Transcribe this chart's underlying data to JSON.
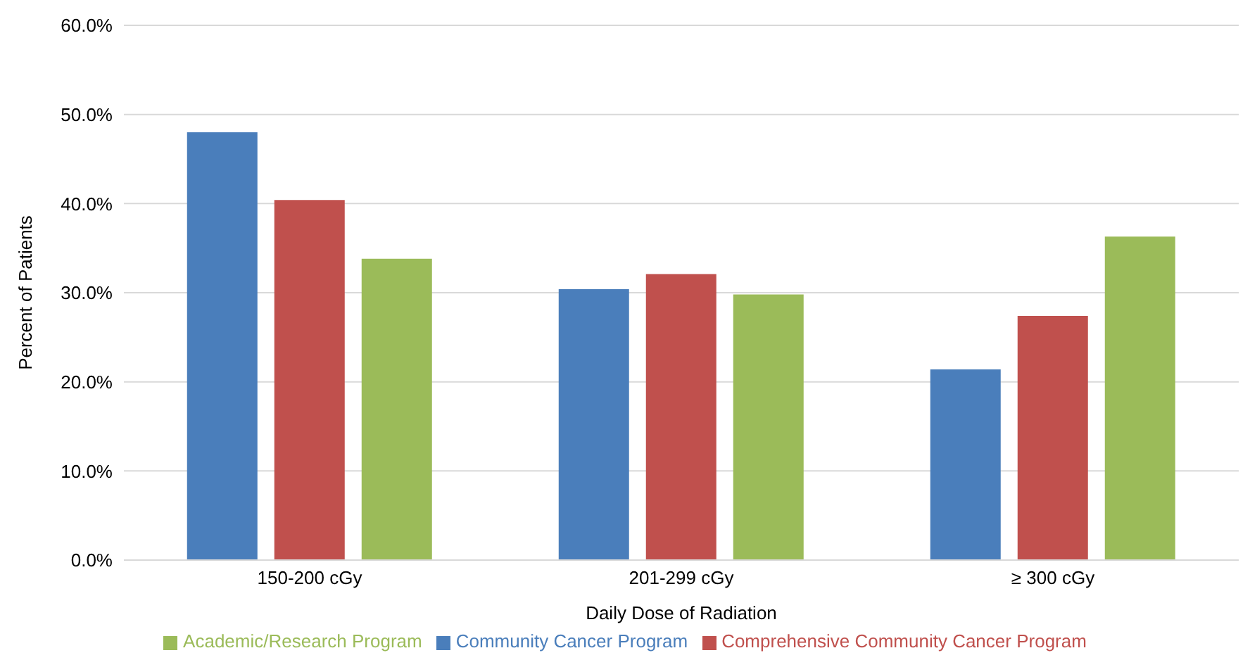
{
  "chart_data": {
    "type": "bar",
    "xlabel": "Daily Dose of Radiation",
    "ylabel": "Percent of Patients",
    "categories": [
      "150-200 cGy",
      "201-299 cGy",
      "≥ 300 cGy"
    ],
    "series": [
      {
        "name": "Community Cancer Program",
        "color": "#4a7ebb",
        "values": [
          48.0,
          30.4,
          21.4
        ]
      },
      {
        "name": "Comprehensive Community Cancer Program",
        "color": "#c0504d",
        "values": [
          40.4,
          32.1,
          27.4
        ]
      },
      {
        "name": "Academic/Research Program",
        "color": "#9bbb59",
        "values": [
          33.8,
          29.8,
          36.3
        ]
      }
    ],
    "ylim": [
      0,
      60
    ],
    "yticks": [
      {
        "value": 0,
        "label": "0.0%"
      },
      {
        "value": 10,
        "label": "10.0%"
      },
      {
        "value": 20,
        "label": "20.0%"
      },
      {
        "value": 30,
        "label": "30.0%"
      },
      {
        "value": 40,
        "label": "40.0%"
      },
      {
        "value": 50,
        "label": "50.0%"
      },
      {
        "value": 60,
        "label": "60.0%"
      }
    ],
    "grid": "y",
    "legend": "bottom"
  }
}
